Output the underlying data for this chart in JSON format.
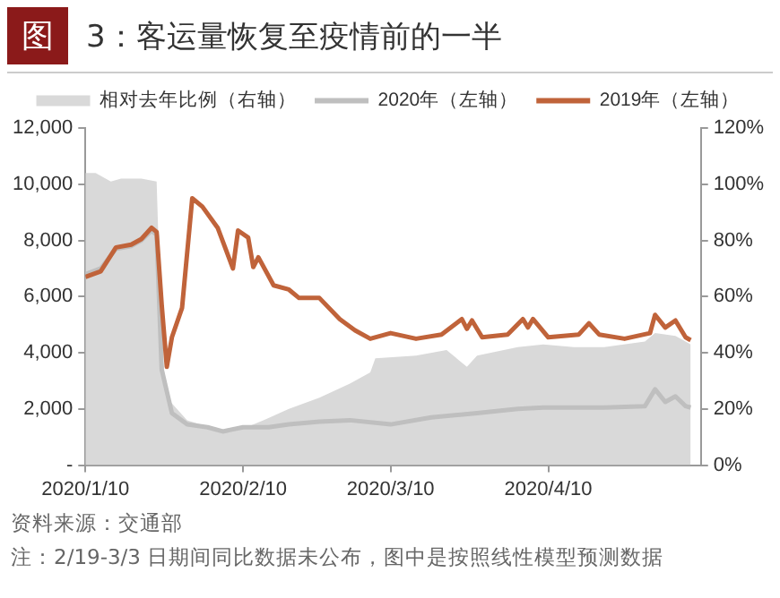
{
  "chart_data": {
    "type": "line",
    "title": "图 3：客运量恢复至疫情前的一半",
    "annotations": [
      "资料来源：交通部",
      "注：2/19-3/3 日期间同比数据未公布，图中是按照线性模型预测数据"
    ],
    "legend": "top",
    "marker": "none",
    "line_style": "solid",
    "grid": false,
    "xlim": [
      "2020-01-10",
      "2020-05-10"
    ],
    "xticks": [
      {
        "value": "2020-01-10",
        "label": "2020/1/10"
      },
      {
        "value": "2020-02-10",
        "label": "2020/2/10"
      },
      {
        "value": "2020-03-10",
        "label": "2020/3/10"
      },
      {
        "value": "2020-04-10",
        "label": "2020/4/10"
      }
    ],
    "ylim": [
      0,
      12000
    ],
    "yticks": [
      {
        "value": 0,
        "label": "-"
      },
      {
        "value": 2000,
        "label": "2,000"
      },
      {
        "value": 4000,
        "label": "4,000"
      },
      {
        "value": 6000,
        "label": "6,000"
      },
      {
        "value": 8000,
        "label": "8,000"
      },
      {
        "value": 10000,
        "label": "10,000"
      },
      {
        "value": 12000,
        "label": "12,000"
      }
    ],
    "y2lim": [
      0,
      120
    ],
    "y2ticks": [
      {
        "value": 0,
        "label": "0%"
      },
      {
        "value": 20,
        "label": "20%"
      },
      {
        "value": 40,
        "label": "40%"
      },
      {
        "value": 60,
        "label": "60%"
      },
      {
        "value": 80,
        "label": "80%"
      },
      {
        "value": 100,
        "label": "100%"
      },
      {
        "value": 120,
        "label": "120%"
      }
    ],
    "series": [
      {
        "name": "相对去年比例（右轴）",
        "type": "area",
        "axis": "y2",
        "color": "#d9d9d9",
        "x": [
          "2020-01-10",
          "2020-01-12",
          "2020-01-15",
          "2020-01-17",
          "2020-01-21",
          "2020-01-24",
          "2020-01-25",
          "2020-01-26",
          "2020-01-30",
          "2020-02-06",
          "2020-02-10",
          "2020-02-14",
          "2020-02-19",
          "2020-02-25",
          "2020-03-02",
          "2020-03-06",
          "2020-03-07",
          "2020-03-15",
          "2020-03-21",
          "2020-03-25",
          "2020-03-27",
          "2020-04-04",
          "2020-04-09",
          "2020-04-15",
          "2020-04-21",
          "2020-04-29",
          "2020-05-01",
          "2020-05-05",
          "2020-05-08"
        ],
        "values": [
          104,
          104,
          101,
          102,
          102,
          101,
          42,
          24,
          16,
          12,
          13,
          16,
          20,
          24,
          29,
          33,
          38,
          39,
          41,
          35,
          39,
          42,
          43,
          42,
          42,
          44,
          47,
          46,
          43
        ]
      },
      {
        "name": "2020年（左轴）",
        "color": "#bfbfbf",
        "x": [
          "2020-01-10",
          "2020-01-13",
          "2020-01-16",
          "2020-01-19",
          "2020-01-21",
          "2020-01-23",
          "2020-01-24",
          "2020-01-25",
          "2020-01-27",
          "2020-01-30",
          "2020-02-03",
          "2020-02-06",
          "2020-02-10",
          "2020-02-15",
          "2020-02-19",
          "2020-02-25",
          "2020-03-02",
          "2020-03-10",
          "2020-03-18",
          "2020-03-27",
          "2020-04-04",
          "2020-04-09",
          "2020-04-21",
          "2020-04-29",
          "2020-05-01",
          "2020-05-03",
          "2020-05-05",
          "2020-05-07",
          "2020-05-08"
        ],
        "values": [
          6800,
          7000,
          7700,
          7800,
          8000,
          8350,
          8200,
          3400,
          1850,
          1450,
          1350,
          1200,
          1350,
          1350,
          1450,
          1550,
          1600,
          1450,
          1700,
          1850,
          2000,
          2050,
          2050,
          2100,
          2700,
          2250,
          2450,
          2100,
          2050
        ]
      },
      {
        "name": "2019年（左轴）",
        "color": "#c0633a",
        "x": [
          "2020-01-10",
          "2020-01-13",
          "2020-01-16",
          "2020-01-19",
          "2020-01-21",
          "2020-01-23",
          "2020-01-24",
          "2020-01-25",
          "2020-01-26",
          "2020-01-27",
          "2020-01-29",
          "2020-01-31",
          "2020-02-02",
          "2020-02-05",
          "2020-02-08",
          "2020-02-09",
          "2020-02-11",
          "2020-02-12",
          "2020-02-13",
          "2020-02-16",
          "2020-02-19",
          "2020-02-21",
          "2020-02-25",
          "2020-02-29",
          "2020-03-03",
          "2020-03-06",
          "2020-03-10",
          "2020-03-15",
          "2020-03-20",
          "2020-03-24",
          "2020-03-25",
          "2020-03-26",
          "2020-03-28",
          "2020-04-02",
          "2020-04-05",
          "2020-04-06",
          "2020-04-07",
          "2020-04-10",
          "2020-04-16",
          "2020-04-18",
          "2020-04-20",
          "2020-04-25",
          "2020-04-30",
          "2020-05-01",
          "2020-05-03",
          "2020-05-05",
          "2020-05-07",
          "2020-05-08"
        ],
        "values": [
          6700,
          6900,
          7750,
          7850,
          8050,
          8450,
          8300,
          5700,
          3500,
          4550,
          5600,
          9500,
          9200,
          8450,
          7000,
          8350,
          8100,
          7050,
          7400,
          6400,
          6250,
          5950,
          5950,
          5200,
          4800,
          4500,
          4700,
          4500,
          4650,
          5200,
          4850,
          5150,
          4550,
          4650,
          5200,
          4900,
          5200,
          4550,
          4650,
          5050,
          4650,
          4500,
          4700,
          5350,
          4900,
          5150,
          4550,
          4450
        ]
      }
    ]
  }
}
